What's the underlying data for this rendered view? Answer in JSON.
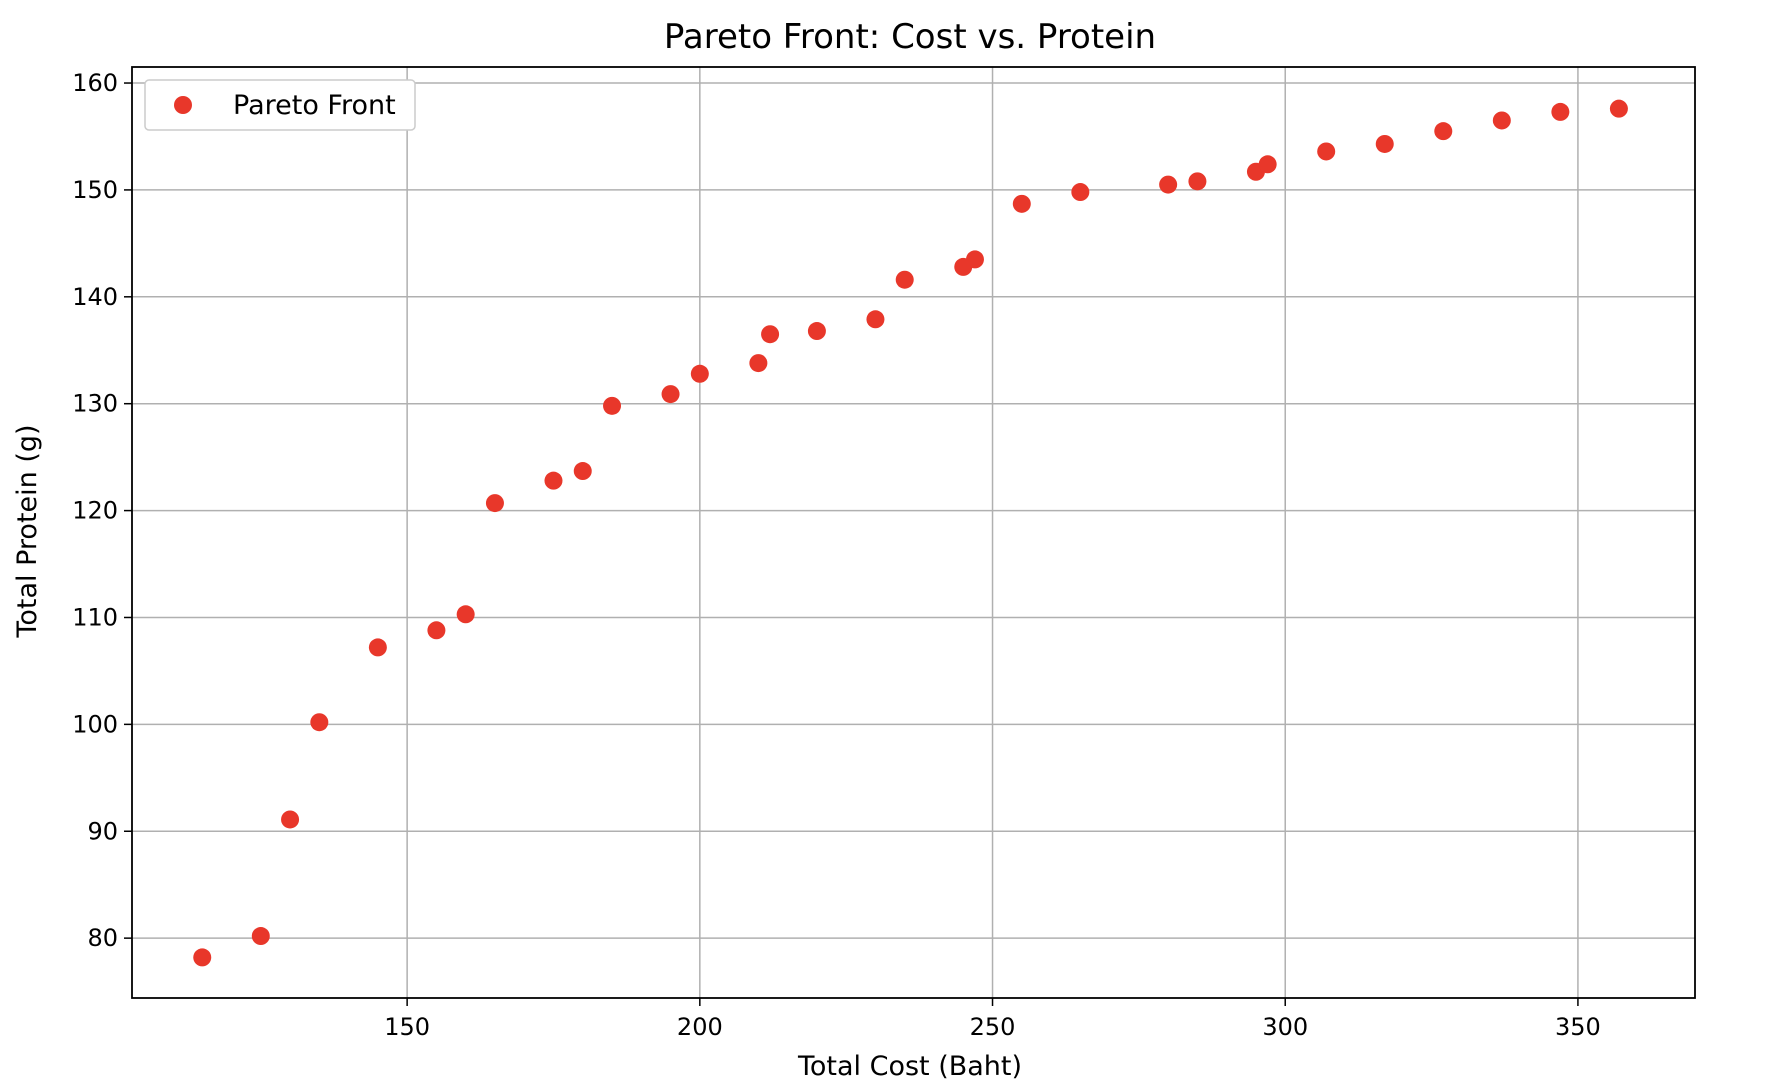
{
  "chart_data": {
    "type": "scatter",
    "title": "Pareto Front: Cost vs. Protein",
    "xlabel": "Total Cost (Baht)",
    "ylabel": "Total Protein (g)",
    "xlim": [
      103,
      370
    ],
    "ylim": [
      74.4,
      161.5
    ],
    "x_ticks": [
      150,
      200,
      250,
      300,
      350
    ],
    "y_ticks": [
      80,
      90,
      100,
      110,
      120,
      130,
      140,
      150,
      160
    ],
    "grid": true,
    "legend": {
      "placement": "top-left",
      "entries": [
        "Pareto Front"
      ]
    },
    "series": [
      {
        "name": "Pareto Front",
        "color": "#e8372a",
        "marker": "circle",
        "points": [
          {
            "x": 115,
            "y": 78.2
          },
          {
            "x": 125,
            "y": 80.2
          },
          {
            "x": 130,
            "y": 91.1
          },
          {
            "x": 135,
            "y": 100.2
          },
          {
            "x": 145,
            "y": 107.2
          },
          {
            "x": 155,
            "y": 108.8
          },
          {
            "x": 160,
            "y": 110.3
          },
          {
            "x": 165,
            "y": 120.7
          },
          {
            "x": 175,
            "y": 122.8
          },
          {
            "x": 180,
            "y": 123.7
          },
          {
            "x": 185,
            "y": 129.8
          },
          {
            "x": 195,
            "y": 130.9
          },
          {
            "x": 200,
            "y": 132.8
          },
          {
            "x": 210,
            "y": 133.8
          },
          {
            "x": 212,
            "y": 136.5
          },
          {
            "x": 220,
            "y": 136.8
          },
          {
            "x": 230,
            "y": 137.9
          },
          {
            "x": 235,
            "y": 141.6
          },
          {
            "x": 245,
            "y": 142.8
          },
          {
            "x": 247,
            "y": 143.5
          },
          {
            "x": 255,
            "y": 148.7
          },
          {
            "x": 265,
            "y": 149.8
          },
          {
            "x": 280,
            "y": 150.5
          },
          {
            "x": 285,
            "y": 150.8
          },
          {
            "x": 295,
            "y": 151.7
          },
          {
            "x": 297,
            "y": 152.4
          },
          {
            "x": 307,
            "y": 153.6
          },
          {
            "x": 317,
            "y": 154.3
          },
          {
            "x": 327,
            "y": 155.5
          },
          {
            "x": 337,
            "y": 156.5
          },
          {
            "x": 347,
            "y": 157.3
          },
          {
            "x": 357,
            "y": 157.6
          }
        ]
      }
    ]
  }
}
